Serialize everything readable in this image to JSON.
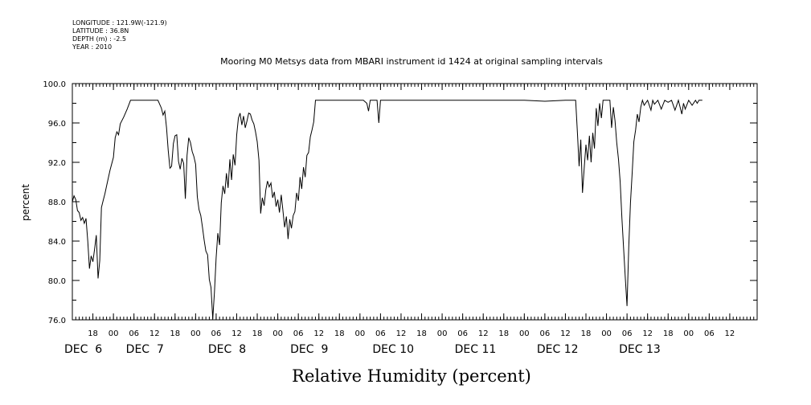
{
  "header": {
    "lines": [
      "LONGITUDE : 121.9W(-121.9)",
      "LATITUDE : 36.8N",
      "DEPTH (m) : -2.5",
      "YEAR : 2010"
    ]
  },
  "chart_data": {
    "type": "line",
    "title": "Mooring M0 Metsys data from MBARI instrument id 1424 at original sampling intervals",
    "xlabel": "Relative Humidity (percent)",
    "ylabel": "percent",
    "xlim": [
      "2010-12-05T12:00",
      "2010-12-13T20:00"
    ],
    "ylim": [
      76.0,
      100.0
    ],
    "y_ticks": [
      "76.0",
      "80.0",
      "84.0",
      "88.0",
      "92.0",
      "96.0",
      "100.0"
    ],
    "x_hour_ticks": [
      {
        "t": "2010-12-05T18:00",
        "label": "18"
      },
      {
        "t": "2010-12-06T00:00",
        "label": "00"
      },
      {
        "t": "2010-12-06T06:00",
        "label": "06"
      },
      {
        "t": "2010-12-06T12:00",
        "label": "12"
      },
      {
        "t": "2010-12-06T18:00",
        "label": "18"
      },
      {
        "t": "2010-12-07T00:00",
        "label": "00"
      },
      {
        "t": "2010-12-07T06:00",
        "label": "06"
      },
      {
        "t": "2010-12-07T12:00",
        "label": "12"
      },
      {
        "t": "2010-12-07T18:00",
        "label": "18"
      },
      {
        "t": "2010-12-08T00:00",
        "label": "00"
      },
      {
        "t": "2010-12-08T06:00",
        "label": "06"
      },
      {
        "t": "2010-12-08T12:00",
        "label": "12"
      },
      {
        "t": "2010-12-08T18:00",
        "label": "18"
      },
      {
        "t": "2010-12-09T00:00",
        "label": "00"
      },
      {
        "t": "2010-12-09T06:00",
        "label": "06"
      },
      {
        "t": "2010-12-09T12:00",
        "label": "12"
      },
      {
        "t": "2010-12-09T18:00",
        "label": "18"
      },
      {
        "t": "2010-12-10T00:00",
        "label": "00"
      },
      {
        "t": "2010-12-10T06:00",
        "label": "06"
      },
      {
        "t": "2010-12-10T12:00",
        "label": "12"
      },
      {
        "t": "2010-12-10T18:00",
        "label": "18"
      },
      {
        "t": "2010-12-11T00:00",
        "label": "00"
      },
      {
        "t": "2010-12-11T06:00",
        "label": "06"
      },
      {
        "t": "2010-12-11T12:00",
        "label": "12"
      },
      {
        "t": "2010-12-11T18:00",
        "label": "18"
      },
      {
        "t": "2010-12-12T00:00",
        "label": "00"
      },
      {
        "t": "2010-12-12T06:00",
        "label": "06"
      },
      {
        "t": "2010-12-12T12:00",
        "label": "12"
      },
      {
        "t": "2010-12-12T18:00",
        "label": "18"
      },
      {
        "t": "2010-12-13T00:00",
        "label": "00"
      },
      {
        "t": "2010-12-13T06:00",
        "label": "06"
      },
      {
        "t": "2010-12-13T12:00",
        "label": "12"
      }
    ],
    "x_day_labels": [
      {
        "t": "2010-12-05T12:00",
        "label": "DEC  6"
      },
      {
        "t": "2010-12-06T06:00",
        "label": "DEC  7"
      },
      {
        "t": "2010-12-07T06:00",
        "label": "DEC  8"
      },
      {
        "t": "2010-12-08T06:00",
        "label": "DEC  9"
      },
      {
        "t": "2010-12-09T06:00",
        "label": "DEC 10"
      },
      {
        "t": "2010-12-10T06:00",
        "label": "DEC 11"
      },
      {
        "t": "2010-12-11T06:00",
        "label": "DEC 12"
      },
      {
        "t": "2010-12-12T06:00",
        "label": "DEC 13"
      }
    ],
    "grid": false,
    "series": [
      {
        "points": [
          [
            "2010-12-05T12:00",
            88.0
          ],
          [
            "2010-12-05T12:30",
            88.6
          ],
          [
            "2010-12-05T13:00",
            88.2
          ],
          [
            "2010-12-05T13:30",
            87.1
          ],
          [
            "2010-12-05T14:00",
            86.9
          ],
          [
            "2010-12-05T14:30",
            86.1
          ],
          [
            "2010-12-05T15:00",
            86.4
          ],
          [
            "2010-12-05T15:30",
            85.8
          ],
          [
            "2010-12-05T16:00",
            86.3
          ],
          [
            "2010-12-05T16:30",
            84.0
          ],
          [
            "2010-12-05T17:00",
            81.2
          ],
          [
            "2010-12-05T17:30",
            82.5
          ],
          [
            "2010-12-05T18:00",
            81.9
          ],
          [
            "2010-12-05T18:30",
            83.2
          ],
          [
            "2010-12-05T19:00",
            84.6
          ],
          [
            "2010-12-05T19:30",
            80.2
          ],
          [
            "2010-12-05T20:00",
            82.0
          ],
          [
            "2010-12-05T20:30",
            87.4
          ],
          [
            "2010-12-05T21:00",
            88.1
          ],
          [
            "2010-12-05T21:30",
            88.8
          ],
          [
            "2010-12-05T22:00",
            89.6
          ],
          [
            "2010-12-05T23:00",
            91.2
          ],
          [
            "2010-12-06T00:00",
            92.5
          ],
          [
            "2010-12-06T00:30",
            94.5
          ],
          [
            "2010-12-06T01:00",
            95.1
          ],
          [
            "2010-12-06T01:30",
            94.8
          ],
          [
            "2010-12-06T02:00",
            95.9
          ],
          [
            "2010-12-06T03:00",
            96.6
          ],
          [
            "2010-12-06T04:00",
            97.4
          ],
          [
            "2010-12-06T05:00",
            98.3
          ],
          [
            "2010-12-06T06:00",
            98.3
          ],
          [
            "2010-12-06T08:00",
            98.3
          ],
          [
            "2010-12-06T10:00",
            98.3
          ],
          [
            "2010-12-06T13:00",
            98.3
          ],
          [
            "2010-12-06T14:00",
            97.5
          ],
          [
            "2010-12-06T14:30",
            96.8
          ],
          [
            "2010-12-06T15:00",
            97.2
          ],
          [
            "2010-12-06T15:30",
            95.5
          ],
          [
            "2010-12-06T16:00",
            93.2
          ],
          [
            "2010-12-06T16:30",
            91.4
          ],
          [
            "2010-12-06T17:00",
            91.6
          ],
          [
            "2010-12-06T17:30",
            93.9
          ],
          [
            "2010-12-06T18:00",
            94.7
          ],
          [
            "2010-12-06T18:30",
            94.8
          ],
          [
            "2010-12-06T19:00",
            92.1
          ],
          [
            "2010-12-06T19:30",
            91.3
          ],
          [
            "2010-12-06T20:00",
            92.4
          ],
          [
            "2010-12-06T20:30",
            91.9
          ],
          [
            "2010-12-06T21:00",
            88.3
          ],
          [
            "2010-12-06T21:30",
            92.7
          ],
          [
            "2010-12-06T22:00",
            94.5
          ],
          [
            "2010-12-06T22:30",
            94.0
          ],
          [
            "2010-12-06T23:00",
            93.1
          ],
          [
            "2010-12-06T23:30",
            92.6
          ],
          [
            "2010-12-07T00:00",
            91.8
          ],
          [
            "2010-12-07T00:30",
            88.5
          ],
          [
            "2010-12-07T01:00",
            87.2
          ],
          [
            "2010-12-07T01:30",
            86.6
          ],
          [
            "2010-12-07T02:00",
            85.4
          ],
          [
            "2010-12-07T02:30",
            84.1
          ],
          [
            "2010-12-07T03:00",
            83.0
          ],
          [
            "2010-12-07T03:30",
            82.6
          ],
          [
            "2010-12-07T04:00",
            80.1
          ],
          [
            "2010-12-07T04:30",
            79.3
          ],
          [
            "2010-12-07T05:00",
            76.1
          ],
          [
            "2010-12-07T05:30",
            78.8
          ],
          [
            "2010-12-07T06:00",
            82.3
          ],
          [
            "2010-12-07T06:30",
            84.8
          ],
          [
            "2010-12-07T07:00",
            83.6
          ],
          [
            "2010-12-07T07:30",
            87.9
          ],
          [
            "2010-12-07T08:00",
            89.6
          ],
          [
            "2010-12-07T08:30",
            88.8
          ],
          [
            "2010-12-07T09:00",
            90.9
          ],
          [
            "2010-12-07T09:30",
            89.4
          ],
          [
            "2010-12-07T10:00",
            92.3
          ],
          [
            "2010-12-07T10:30",
            90.2
          ],
          [
            "2010-12-07T11:00",
            92.8
          ],
          [
            "2010-12-07T11:30",
            91.7
          ],
          [
            "2010-12-07T12:00",
            94.8
          ],
          [
            "2010-12-07T12:30",
            96.5
          ],
          [
            "2010-12-07T13:00",
            97.0
          ],
          [
            "2010-12-07T13:30",
            95.8
          ],
          [
            "2010-12-07T14:00",
            96.7
          ],
          [
            "2010-12-07T14:30",
            95.5
          ],
          [
            "2010-12-07T15:00",
            96.2
          ],
          [
            "2010-12-07T15:30",
            97.0
          ],
          [
            "2010-12-07T16:00",
            96.9
          ],
          [
            "2010-12-07T16:30",
            96.3
          ],
          [
            "2010-12-07T17:00",
            95.9
          ],
          [
            "2010-12-07T17:30",
            95.1
          ],
          [
            "2010-12-07T18:00",
            94.1
          ],
          [
            "2010-12-07T18:30",
            92.2
          ],
          [
            "2010-12-07T19:00",
            86.8
          ],
          [
            "2010-12-07T19:30",
            88.4
          ],
          [
            "2010-12-07T20:00",
            87.6
          ],
          [
            "2010-12-07T20:30",
            89.2
          ],
          [
            "2010-12-07T21:00",
            90.1
          ],
          [
            "2010-12-07T21:30",
            89.5
          ],
          [
            "2010-12-07T22:00",
            89.9
          ],
          [
            "2010-12-07T22:30",
            88.4
          ],
          [
            "2010-12-07T23:00",
            89.0
          ],
          [
            "2010-12-07T23:30",
            87.5
          ],
          [
            "2010-12-08T00:00",
            88.2
          ],
          [
            "2010-12-08T00:30",
            86.9
          ],
          [
            "2010-12-08T01:00",
            88.7
          ],
          [
            "2010-12-08T01:30",
            87.1
          ],
          [
            "2010-12-08T02:00",
            85.4
          ],
          [
            "2010-12-08T02:30",
            86.5
          ],
          [
            "2010-12-08T03:00",
            84.2
          ],
          [
            "2010-12-08T03:30",
            86.2
          ],
          [
            "2010-12-08T04:00",
            85.3
          ],
          [
            "2010-12-08T04:30",
            86.6
          ],
          [
            "2010-12-08T05:00",
            87.0
          ],
          [
            "2010-12-08T05:30",
            88.9
          ],
          [
            "2010-12-08T06:00",
            88.1
          ],
          [
            "2010-12-08T06:30",
            90.5
          ],
          [
            "2010-12-08T07:00",
            89.3
          ],
          [
            "2010-12-08T07:30",
            91.5
          ],
          [
            "2010-12-08T08:00",
            90.5
          ],
          [
            "2010-12-08T08:30",
            92.7
          ],
          [
            "2010-12-08T09:00",
            93.0
          ],
          [
            "2010-12-08T09:30",
            94.6
          ],
          [
            "2010-12-08T10:00",
            95.3
          ],
          [
            "2010-12-08T10:30",
            96.1
          ],
          [
            "2010-12-08T11:00",
            98.3
          ],
          [
            "2010-12-08T14:00",
            98.3
          ],
          [
            "2010-12-08T20:00",
            98.3
          ],
          [
            "2010-12-09T01:00",
            98.3
          ],
          [
            "2010-12-09T02:00",
            98.0
          ],
          [
            "2010-12-09T02:30",
            97.2
          ],
          [
            "2010-12-09T03:00",
            98.3
          ],
          [
            "2010-12-09T05:00",
            98.3
          ],
          [
            "2010-12-09T05:30",
            96.0
          ],
          [
            "2010-12-09T06:00",
            98.3
          ],
          [
            "2010-12-09T12:00",
            98.3
          ],
          [
            "2010-12-10T00:00",
            98.3
          ],
          [
            "2010-12-10T12:00",
            98.3
          ],
          [
            "2010-12-11T00:00",
            98.3
          ],
          [
            "2010-12-11T06:00",
            98.2
          ],
          [
            "2010-12-11T12:00",
            98.3
          ],
          [
            "2010-12-11T15:00",
            98.3
          ],
          [
            "2010-12-11T15:30",
            95.0
          ],
          [
            "2010-12-11T16:00",
            91.6
          ],
          [
            "2010-12-11T16:30",
            94.3
          ],
          [
            "2010-12-11T17:00",
            88.9
          ],
          [
            "2010-12-11T17:30",
            91.5
          ],
          [
            "2010-12-11T18:00",
            93.8
          ],
          [
            "2010-12-11T18:30",
            92.2
          ],
          [
            "2010-12-11T19:00",
            94.7
          ],
          [
            "2010-12-11T19:30",
            92.0
          ],
          [
            "2010-12-11T20:00",
            95.0
          ],
          [
            "2010-12-11T20:30",
            93.4
          ],
          [
            "2010-12-11T21:00",
            97.5
          ],
          [
            "2010-12-11T21:30",
            95.7
          ],
          [
            "2010-12-11T22:00",
            98.0
          ],
          [
            "2010-12-11T22:30",
            96.5
          ],
          [
            "2010-12-11T23:00",
            98.3
          ],
          [
            "2010-12-12T01:00",
            98.3
          ],
          [
            "2010-12-12T01:30",
            95.5
          ],
          [
            "2010-12-12T02:00",
            97.6
          ],
          [
            "2010-12-12T02:30",
            96.2
          ],
          [
            "2010-12-12T03:00",
            94.0
          ],
          [
            "2010-12-12T03:30",
            92.3
          ],
          [
            "2010-12-12T04:00",
            90.0
          ],
          [
            "2010-12-12T04:30",
            86.4
          ],
          [
            "2010-12-12T05:00",
            83.2
          ],
          [
            "2010-12-12T05:30",
            80.2
          ],
          [
            "2010-12-12T06:00",
            77.4
          ],
          [
            "2010-12-12T06:30",
            83.5
          ],
          [
            "2010-12-12T07:00",
            87.9
          ],
          [
            "2010-12-12T07:30",
            90.9
          ],
          [
            "2010-12-12T08:00",
            94.1
          ],
          [
            "2010-12-12T08:30",
            95.3
          ],
          [
            "2010-12-12T09:00",
            96.9
          ],
          [
            "2010-12-12T09:30",
            96.1
          ],
          [
            "2010-12-12T10:00",
            97.6
          ],
          [
            "2010-12-12T10:30",
            98.3
          ],
          [
            "2010-12-12T11:00",
            97.8
          ],
          [
            "2010-12-12T12:00",
            98.3
          ],
          [
            "2010-12-12T13:00",
            97.3
          ],
          [
            "2010-12-12T13:30",
            98.3
          ],
          [
            "2010-12-12T14:00",
            97.9
          ],
          [
            "2010-12-12T15:00",
            98.3
          ],
          [
            "2010-12-12T16:00",
            97.4
          ],
          [
            "2010-12-12T17:00",
            98.3
          ],
          [
            "2010-12-12T18:00",
            98.1
          ],
          [
            "2010-12-12T19:00",
            98.3
          ],
          [
            "2010-12-12T20:00",
            97.3
          ],
          [
            "2010-12-12T21:00",
            98.3
          ],
          [
            "2010-12-12T22:00",
            96.9
          ],
          [
            "2010-12-12T22:30",
            98.0
          ],
          [
            "2010-12-12T23:00",
            97.4
          ],
          [
            "2010-12-13T00:00",
            98.3
          ],
          [
            "2010-12-13T01:00",
            97.8
          ],
          [
            "2010-12-13T02:00",
            98.3
          ],
          [
            "2010-12-13T02:30",
            98.0
          ],
          [
            "2010-12-13T03:00",
            98.3
          ],
          [
            "2010-12-13T04:00",
            98.3
          ]
        ]
      }
    ]
  }
}
